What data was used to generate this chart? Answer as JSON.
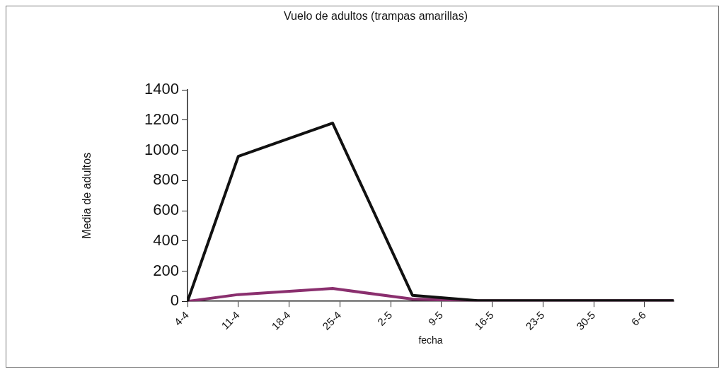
{
  "chart_data": {
    "type": "line",
    "title": "Vuelo de adultos (trampas amarillas)",
    "xlabel": "fecha",
    "ylabel": "Media de adultos",
    "xlim": [
      "--04-04",
      "--06-10"
    ],
    "xticks": [
      {
        "value": "--04-04",
        "label": "4-4"
      },
      {
        "value": "--04-11",
        "label": "11-4"
      },
      {
        "value": "--04-18",
        "label": "18-4"
      },
      {
        "value": "--04-25",
        "label": "25-4"
      },
      {
        "value": "--05-02",
        "label": "2-5"
      },
      {
        "value": "--05-09",
        "label": "9-5"
      },
      {
        "value": "--05-16",
        "label": "16-5"
      },
      {
        "value": "--05-23",
        "label": "23-5"
      },
      {
        "value": "--05-30",
        "label": "30-5"
      },
      {
        "value": "--06-06",
        "label": "6-6"
      }
    ],
    "ylim": [
      0,
      1400
    ],
    "yticks": [
      0,
      200,
      400,
      600,
      800,
      1000,
      1200,
      1400
    ],
    "x": [
      "--04-04",
      "--04-11",
      "--04-24",
      "--05-05",
      "--05-14",
      "--06-10"
    ],
    "series": [
      {
        "color": "#111111",
        "values": [
          0,
          960,
          1180,
          40,
          5,
          5
        ]
      },
      {
        "color": "#8a2f6e",
        "values": [
          0,
          45,
          85,
          15,
          3,
          5
        ]
      }
    ],
    "grid": false,
    "legend": false,
    "marker": "none",
    "line_style": "solid"
  }
}
